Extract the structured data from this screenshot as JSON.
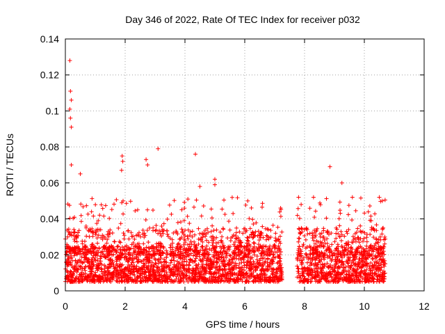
{
  "chart_data": {
    "type": "scatter",
    "title": "Day 346 of 2022, Rate Of TEC Index for receiver p032",
    "xlabel": "GPS time / hours",
    "ylabel": "ROTI / TECUs",
    "xlim": [
      0,
      12
    ],
    "ylim": [
      0,
      0.14
    ],
    "xticks": [
      0,
      2,
      4,
      6,
      8,
      10,
      12
    ],
    "yticks": [
      0,
      0.02,
      0.04,
      0.06,
      0.08,
      0.1,
      0.12,
      0.14
    ],
    "xtick_labels": [
      "0",
      "2",
      "4",
      "6",
      "8",
      "10",
      "12"
    ],
    "ytick_labels": [
      "0",
      "0.02",
      "0.04",
      "0.06",
      "0.08",
      "0.1",
      "0.12",
      "0.14"
    ],
    "grid": true,
    "marker": "+",
    "series": [
      {
        "name": "p032",
        "color": "#ff0000",
        "segments": [
          {
            "x_range": [
              0.0,
              7.25
            ],
            "dense_band": [
              0.005,
              0.025
            ]
          },
          {
            "x_range": [
              7.75,
              10.7
            ],
            "dense_band": [
              0.005,
              0.025
            ]
          }
        ],
        "notable_points": [
          [
            0.15,
            0.128
          ],
          [
            0.17,
            0.111
          ],
          [
            0.2,
            0.106
          ],
          [
            0.15,
            0.101
          ],
          [
            0.17,
            0.096
          ],
          [
            0.2,
            0.091
          ],
          [
            0.2,
            0.07
          ],
          [
            0.5,
            0.065
          ],
          [
            1.9,
            0.075
          ],
          [
            1.92,
            0.072
          ],
          [
            1.88,
            0.067
          ],
          [
            2.7,
            0.073
          ],
          [
            2.75,
            0.07
          ],
          [
            3.1,
            0.079
          ],
          [
            4.35,
            0.076
          ],
          [
            4.5,
            0.058
          ],
          [
            5.0,
            0.062
          ],
          [
            5.0,
            0.059
          ],
          [
            6.1,
            0.05
          ],
          [
            7.2,
            0.046
          ],
          [
            7.8,
            0.052
          ],
          [
            8.3,
            0.052
          ],
          [
            8.85,
            0.069
          ],
          [
            9.25,
            0.06
          ],
          [
            9.6,
            0.052
          ],
          [
            10.5,
            0.052
          ],
          [
            10.6,
            0.05
          ]
        ]
      }
    ]
  }
}
